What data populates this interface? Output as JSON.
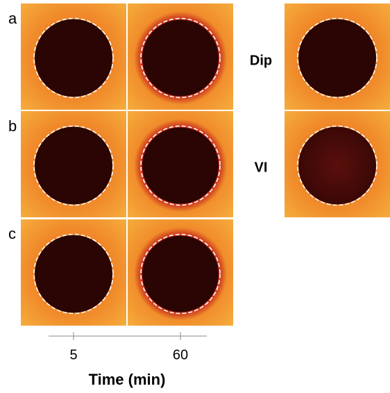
{
  "figure": {
    "row_labels": [
      "a",
      "b",
      "c"
    ],
    "side_labels": [
      "Dip",
      "VI"
    ],
    "x_axis": {
      "title": "Time (min)",
      "ticks": [
        "5",
        "60"
      ]
    }
  }
}
